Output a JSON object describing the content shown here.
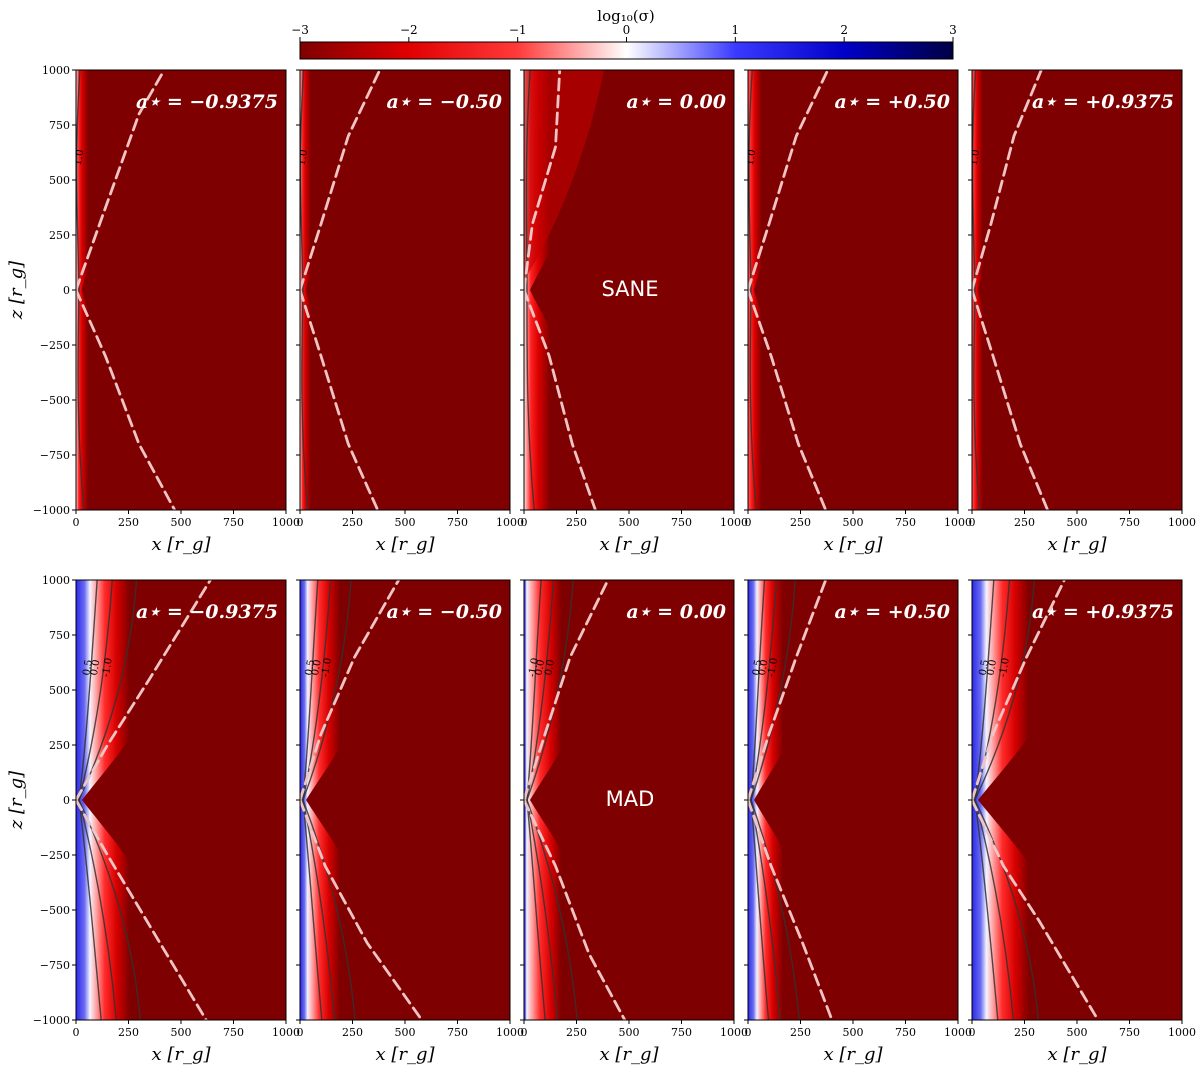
{
  "colorbar": {
    "label": "log₁₀(σ)",
    "ticks": [
      -3,
      -2,
      -1,
      0,
      1,
      2,
      3
    ],
    "tick_labels": [
      "−3",
      "−2",
      "−1",
      "0",
      "1",
      "2",
      "3"
    ],
    "colors": [
      "#7f0000",
      "#e00000",
      "#ff3a3a",
      "#ffffff",
      "#3a3aff",
      "#0000c8",
      "#000044"
    ]
  },
  "colors": {
    "background": "#7f0000",
    "boundary_line": "#f0c4c4",
    "contour_line": "#333333"
  },
  "chart_data": [
    {
      "type": "heatmap",
      "row": "SANE",
      "regime_label": "SANE",
      "show_regime_label": false,
      "spin_label": "a⋆ = −0.9375",
      "xlabel": "x [r_g]",
      "ylabel": "z [r_g]",
      "xlim": [
        0,
        1000
      ],
      "ylim": [
        -1000,
        1000
      ],
      "x_ticks": [
        0,
        250,
        500,
        750,
        1000
      ],
      "y_ticks": [
        -1000,
        -750,
        -500,
        -250,
        0,
        250,
        500,
        750,
        1000
      ],
      "jet_width": 140,
      "jet_level": 0.55,
      "blue_width": 0,
      "boundary_curve": {
        "top": [
          [
            0,
            0
          ],
          [
            150,
            400
          ],
          [
            300,
            800
          ],
          [
            420,
            1000
          ]
        ],
        "bottom": [
          [
            0,
            0
          ],
          [
            140,
            -300
          ],
          [
            300,
            -700
          ],
          [
            470,
            -1000
          ]
        ]
      },
      "contour_labels": [
        "1.0"
      ]
    },
    {
      "type": "heatmap",
      "row": "SANE",
      "regime_label": "SANE",
      "show_regime_label": false,
      "spin_label": "a⋆ = −0.50",
      "xlabel": "x [r_g]",
      "ylabel": "z [r_g]",
      "xlim": [
        0,
        1000
      ],
      "ylim": [
        -1000,
        1000
      ],
      "x_ticks": [
        0,
        250,
        500,
        750,
        1000
      ],
      "y_ticks": [
        -1000,
        -750,
        -500,
        -250,
        0,
        250,
        500,
        750,
        1000
      ],
      "jet_width": 130,
      "jet_level": 0.55,
      "blue_width": 0,
      "boundary_curve": {
        "top": [
          [
            0,
            0
          ],
          [
            100,
            300
          ],
          [
            230,
            700
          ],
          [
            380,
            1000
          ]
        ],
        "bottom": [
          [
            0,
            0
          ],
          [
            100,
            -300
          ],
          [
            230,
            -700
          ],
          [
            370,
            -1000
          ]
        ]
      },
      "contour_labels": [
        "1.0"
      ]
    },
    {
      "type": "heatmap",
      "row": "SANE",
      "regime_label": "SANE",
      "show_regime_label": true,
      "spin_label": "a⋆ = 0.00",
      "xlabel": "x [r_g]",
      "ylabel": "z [r_g]",
      "xlim": [
        0,
        1000
      ],
      "ylim": [
        -1000,
        1000
      ],
      "x_ticks": [
        0,
        250,
        500,
        750,
        1000
      ],
      "y_ticks": [
        -1000,
        -750,
        -500,
        -250,
        0,
        250,
        500,
        750,
        1000
      ],
      "jet_width": 220,
      "jet_level": 0.45,
      "blue_width": 0,
      "boundary_curve": {
        "top": [
          [
            0,
            0
          ],
          [
            40,
            300
          ],
          [
            150,
            650
          ],
          [
            170,
            1000
          ]
        ],
        "bottom": [
          [
            0,
            0
          ],
          [
            120,
            -300
          ],
          [
            230,
            -700
          ],
          [
            340,
            -1000
          ]
        ]
      },
      "contour_labels": []
    },
    {
      "type": "heatmap",
      "row": "SANE",
      "regime_label": "SANE",
      "show_regime_label": false,
      "spin_label": "a⋆ = +0.50",
      "xlabel": "x [r_g]",
      "ylabel": "z [r_g]",
      "xlim": [
        0,
        1000
      ],
      "ylim": [
        -1000,
        1000
      ],
      "x_ticks": [
        0,
        250,
        500,
        750,
        1000
      ],
      "y_ticks": [
        -1000,
        -750,
        -500,
        -250,
        0,
        250,
        500,
        750,
        1000
      ],
      "jet_width": 150,
      "jet_level": 0.15,
      "blue_width": 0,
      "boundary_curve": {
        "top": [
          [
            0,
            0
          ],
          [
            100,
            300
          ],
          [
            230,
            700
          ],
          [
            380,
            1000
          ]
        ],
        "bottom": [
          [
            0,
            0
          ],
          [
            110,
            -300
          ],
          [
            240,
            -700
          ],
          [
            370,
            -1000
          ]
        ]
      },
      "contour_labels": [
        "1.0",
        "-1.0"
      ]
    },
    {
      "type": "heatmap",
      "row": "SANE",
      "regime_label": "SANE",
      "show_regime_label": false,
      "spin_label": "a⋆ = +0.9375",
      "xlabel": "x [r_g]",
      "ylabel": "z [r_g]",
      "xlim": [
        0,
        1000
      ],
      "ylim": [
        -1000,
        1000
      ],
      "x_ticks": [
        0,
        250,
        500,
        750,
        1000
      ],
      "y_ticks": [
        -1000,
        -750,
        -500,
        -250,
        0,
        250,
        500,
        750,
        1000
      ],
      "jet_width": 130,
      "jet_level": 0.25,
      "blue_width": 0,
      "boundary_curve": {
        "top": [
          [
            0,
            0
          ],
          [
            90,
            300
          ],
          [
            200,
            700
          ],
          [
            330,
            1000
          ]
        ],
        "bottom": [
          [
            0,
            0
          ],
          [
            100,
            -300
          ],
          [
            230,
            -700
          ],
          [
            360,
            -1000
          ]
        ]
      },
      "contour_labels": [
        "1.0"
      ]
    },
    {
      "type": "heatmap",
      "row": "MAD",
      "regime_label": "MAD",
      "show_regime_label": false,
      "spin_label": "a⋆ = −0.9375",
      "xlabel": "x [r_g]",
      "ylabel": "z [r_g]",
      "xlim": [
        0,
        1000
      ],
      "ylim": [
        -1000,
        1000
      ],
      "x_ticks": [
        0,
        250,
        500,
        750,
        1000
      ],
      "y_ticks": [
        -1000,
        -750,
        -500,
        -250,
        0,
        250,
        500,
        750,
        1000
      ],
      "jet_width": 320,
      "jet_level": 0.0,
      "blue_width": 110,
      "boundary_curve": {
        "top": [
          [
            0,
            0
          ],
          [
            150,
            250
          ],
          [
            350,
            550
          ],
          [
            640,
            1000
          ]
        ],
        "bottom": [
          [
            0,
            0
          ],
          [
            150,
            -250
          ],
          [
            400,
            -650
          ],
          [
            620,
            -1000
          ]
        ]
      },
      "contour_labels": [
        "0.5",
        "0.0",
        "-1.0"
      ]
    },
    {
      "type": "heatmap",
      "row": "MAD",
      "regime_label": "MAD",
      "show_regime_label": false,
      "spin_label": "a⋆ = −0.50",
      "xlabel": "x [r_g]",
      "ylabel": "z [r_g]",
      "xlim": [
        0,
        1000
      ],
      "ylim": [
        -1000,
        1000
      ],
      "x_ticks": [
        0,
        250,
        500,
        750,
        1000
      ],
      "y_ticks": [
        -1000,
        -750,
        -500,
        -250,
        0,
        250,
        500,
        750,
        1000
      ],
      "jet_width": 270,
      "jet_level": 0.0,
      "blue_width": 70,
      "boundary_curve": {
        "top": [
          [
            0,
            0
          ],
          [
            100,
            300
          ],
          [
            260,
            650
          ],
          [
            470,
            1000
          ]
        ],
        "bottom": [
          [
            0,
            0
          ],
          [
            120,
            -300
          ],
          [
            320,
            -650
          ],
          [
            580,
            -1000
          ]
        ]
      },
      "contour_labels": [
        "0.5",
        "0.0",
        "-1.0"
      ]
    },
    {
      "type": "heatmap",
      "row": "MAD",
      "regime_label": "MAD",
      "show_regime_label": true,
      "spin_label": "a⋆ = 0.00",
      "xlabel": "x [r_g]",
      "ylabel": "z [r_g]",
      "xlim": [
        0,
        1000
      ],
      "ylim": [
        -1000,
        1000
      ],
      "x_ticks": [
        0,
        250,
        500,
        750,
        1000
      ],
      "y_ticks": [
        -1000,
        -750,
        -500,
        -250,
        0,
        250,
        500,
        750,
        1000
      ],
      "jet_width": 260,
      "jet_level": 0.3,
      "blue_width": 25,
      "boundary_curve": {
        "top": [
          [
            0,
            0
          ],
          [
            100,
            300
          ],
          [
            220,
            650
          ],
          [
            400,
            1000
          ]
        ],
        "bottom": [
          [
            0,
            0
          ],
          [
            150,
            -300
          ],
          [
            310,
            -700
          ],
          [
            480,
            -1000
          ]
        ]
      },
      "contour_labels": [
        "-1.0",
        "0.0",
        "0.0"
      ]
    },
    {
      "type": "heatmap",
      "row": "MAD",
      "regime_label": "MAD",
      "show_regime_label": false,
      "spin_label": "a⋆ = +0.50",
      "xlabel": "x [r_g]",
      "ylabel": "z [r_g]",
      "xlim": [
        0,
        1000
      ],
      "ylim": [
        -1000,
        1000
      ],
      "x_ticks": [
        0,
        250,
        500,
        750,
        1000
      ],
      "y_ticks": [
        -1000,
        -750,
        -500,
        -250,
        0,
        250,
        500,
        750,
        1000
      ],
      "jet_width": 250,
      "jet_level": 0.0,
      "blue_width": 90,
      "boundary_curve": {
        "top": [
          [
            0,
            0
          ],
          [
            100,
            300
          ],
          [
            230,
            650
          ],
          [
            370,
            1000
          ]
        ],
        "bottom": [
          [
            0,
            0
          ],
          [
            110,
            -300
          ],
          [
            260,
            -650
          ],
          [
            400,
            -1000
          ]
        ]
      },
      "contour_labels": [
        "0.5",
        "0.0",
        "-1.0"
      ]
    },
    {
      "type": "heatmap",
      "row": "MAD",
      "regime_label": "MAD",
      "show_regime_label": false,
      "spin_label": "a⋆ = +0.9375",
      "xlabel": "x [r_g]",
      "ylabel": "z [r_g]",
      "xlim": [
        0,
        1000
      ],
      "ylim": [
        -1000,
        1000
      ],
      "x_ticks": [
        0,
        250,
        500,
        750,
        1000
      ],
      "y_ticks": [
        -1000,
        -750,
        -500,
        -250,
        0,
        250,
        500,
        750,
        1000
      ],
      "jet_width": 330,
      "jet_level": 0.0,
      "blue_width": 110,
      "boundary_curve": {
        "top": [
          [
            0,
            0
          ],
          [
            100,
            300
          ],
          [
            260,
            650
          ],
          [
            440,
            1000
          ]
        ],
        "bottom": [
          [
            0,
            0
          ],
          [
            150,
            -300
          ],
          [
            320,
            -550
          ],
          [
            600,
            -1000
          ]
        ]
      },
      "contour_labels": [
        "0.5",
        "0.0",
        "-1.0"
      ]
    }
  ]
}
